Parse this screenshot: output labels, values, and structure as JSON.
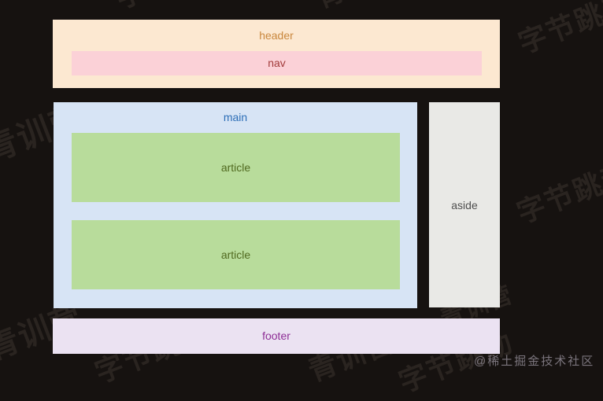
{
  "canvas": {
    "background": "#161210"
  },
  "diagram": {
    "header": {
      "label": "header",
      "bg": "#fce8d1",
      "text_color": "#c9873d"
    },
    "nav": {
      "label": "nav",
      "bg": "#fbd1d7",
      "text_color": "#a23c3c"
    },
    "main": {
      "label": "main",
      "bg": "#d7e4f5",
      "text_color": "#2e6fb7"
    },
    "articles": [
      {
        "label": "article"
      },
      {
        "label": "article"
      }
    ],
    "article_style": {
      "bg": "#b8dc9b",
      "text_color": "#50691f"
    },
    "aside": {
      "label": "aside",
      "bg": "#e9e9e6",
      "text_color": "#4f4f4f"
    },
    "footer": {
      "label": "footer",
      "bg": "#ebe2f2",
      "text_color": "#8e2f96"
    }
  },
  "watermarks": {
    "brand": "字节跳动",
    "camp": "青训营",
    "attribution": "@稀土掘金技术社区",
    "watermark_color": "#2a2420",
    "attribution_color": "#7b757d"
  }
}
